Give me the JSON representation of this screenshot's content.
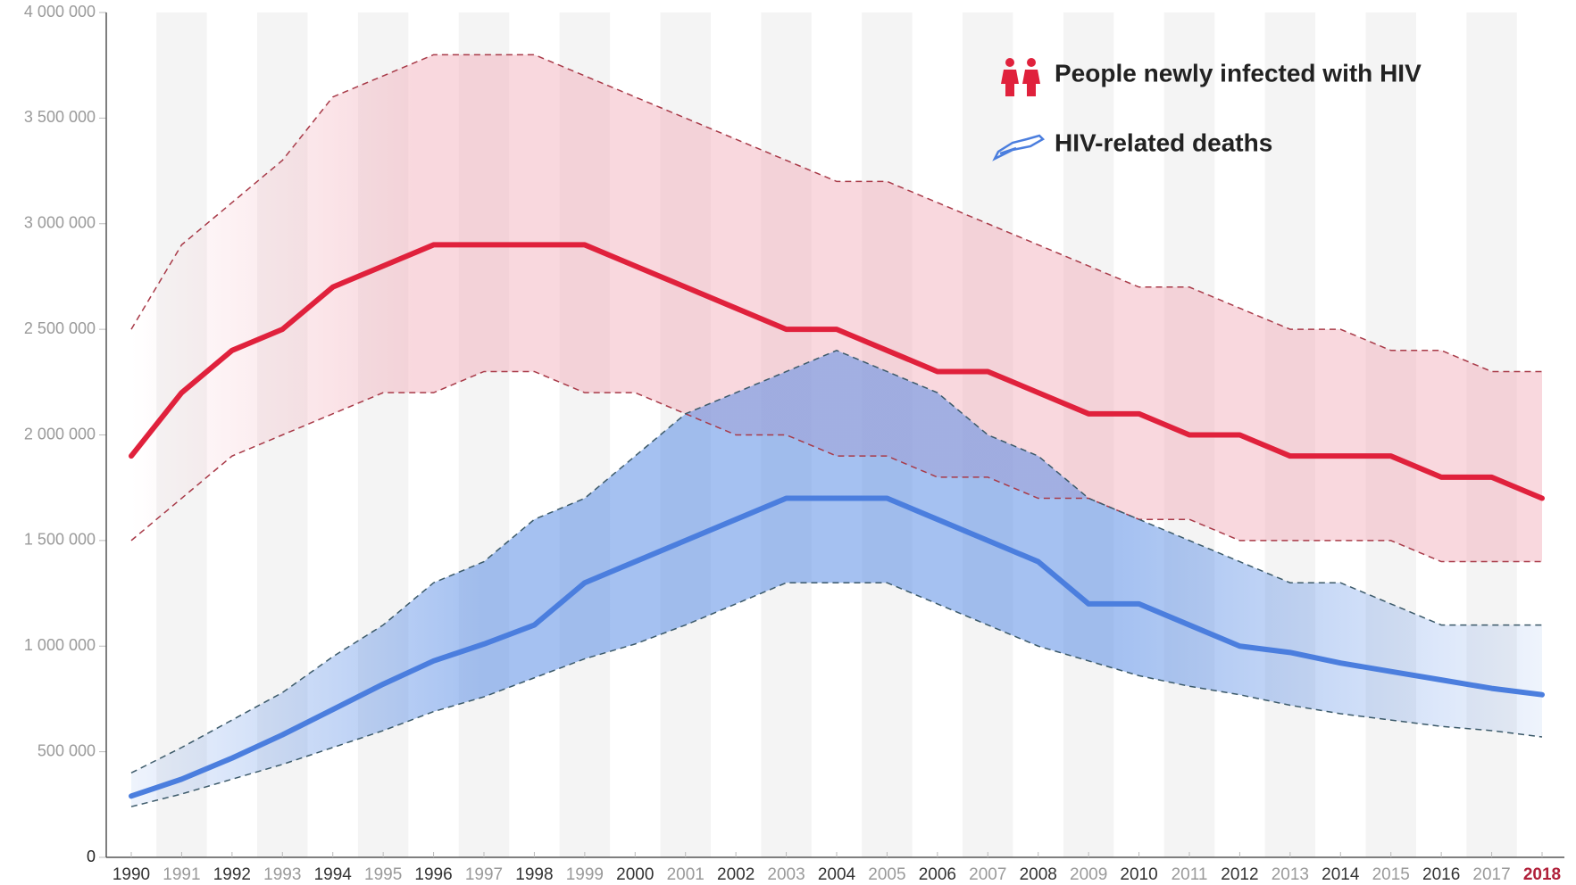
{
  "chart_data": {
    "type": "line",
    "categories": [
      "1990",
      "1991",
      "1992",
      "1993",
      "1994",
      "1995",
      "1996",
      "1997",
      "1998",
      "1999",
      "2000",
      "2001",
      "2002",
      "2003",
      "2004",
      "2005",
      "2006",
      "2007",
      "2008",
      "2009",
      "2010",
      "2011",
      "2012",
      "2013",
      "2014",
      "2015",
      "2016",
      "2017",
      "2018"
    ],
    "ylim": [
      0,
      4000000
    ],
    "yticks": [
      {
        "value": 0,
        "label": "0"
      },
      {
        "value": 500000,
        "label": "500 000"
      },
      {
        "value": 1000000,
        "label": "1 000 000"
      },
      {
        "value": 1500000,
        "label": "1 500 000"
      },
      {
        "value": 2000000,
        "label": "2 000 000"
      },
      {
        "value": 2500000,
        "label": "2 500 000"
      },
      {
        "value": 3000000,
        "label": "3 000 000"
      },
      {
        "value": 3500000,
        "label": "3 500 000"
      },
      {
        "value": 4000000,
        "label": "4 000 000"
      }
    ],
    "legend": "upper right",
    "series": [
      {
        "name": "People newly infected with HIV",
        "color": "#e0213c",
        "values": [
          1900000,
          2200000,
          2400000,
          2500000,
          2700000,
          2800000,
          2900000,
          2900000,
          2900000,
          2900000,
          2800000,
          2700000,
          2600000,
          2500000,
          2500000,
          2400000,
          2300000,
          2300000,
          2200000,
          2100000,
          2100000,
          2000000,
          2000000,
          1900000,
          1900000,
          1900000,
          1800000,
          1800000,
          1700000
        ],
        "upper": [
          2500000,
          2900000,
          3100000,
          3300000,
          3600000,
          3700000,
          3800000,
          3800000,
          3800000,
          3700000,
          3600000,
          3500000,
          3400000,
          3300000,
          3200000,
          3200000,
          3100000,
          3000000,
          2900000,
          2800000,
          2700000,
          2700000,
          2600000,
          2500000,
          2500000,
          2400000,
          2400000,
          2300000,
          2300000
        ],
        "lower": [
          1500000,
          1700000,
          1900000,
          2000000,
          2100000,
          2200000,
          2200000,
          2300000,
          2300000,
          2200000,
          2200000,
          2100000,
          2000000,
          2000000,
          1900000,
          1900000,
          1800000,
          1800000,
          1700000,
          1700000,
          1600000,
          1600000,
          1500000,
          1500000,
          1500000,
          1500000,
          1400000,
          1400000,
          1400000
        ]
      },
      {
        "name": "HIV-related deaths",
        "color": "#4b7ede",
        "values": [
          290000,
          370000,
          470000,
          580000,
          700000,
          820000,
          930000,
          1010000,
          1100000,
          1300000,
          1400000,
          1500000,
          1600000,
          1700000,
          1700000,
          1700000,
          1600000,
          1500000,
          1400000,
          1200000,
          1200000,
          1100000,
          1000000,
          970000,
          920000,
          880000,
          840000,
          800000,
          770000
        ],
        "upper": [
          400000,
          520000,
          650000,
          780000,
          950000,
          1100000,
          1300000,
          1400000,
          1600000,
          1700000,
          1900000,
          2100000,
          2200000,
          2300000,
          2400000,
          2300000,
          2200000,
          2000000,
          1900000,
          1700000,
          1600000,
          1500000,
          1400000,
          1300000,
          1300000,
          1200000,
          1100000,
          1100000,
          1100000
        ],
        "lower": [
          240000,
          300000,
          370000,
          440000,
          520000,
          600000,
          690000,
          760000,
          850000,
          940000,
          1010000,
          1100000,
          1200000,
          1300000,
          1300000,
          1300000,
          1200000,
          1100000,
          1000000,
          930000,
          860000,
          810000,
          770000,
          720000,
          680000,
          650000,
          620000,
          600000,
          570000
        ]
      }
    ]
  }
}
